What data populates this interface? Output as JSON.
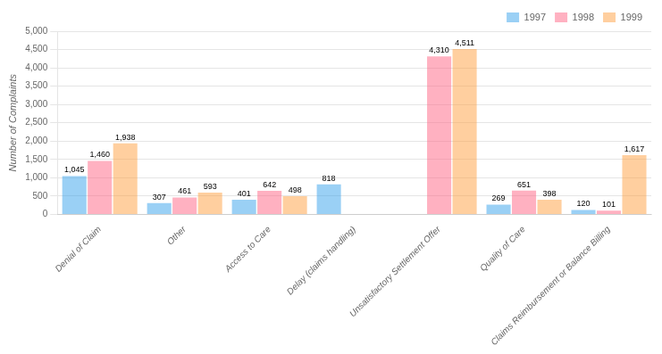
{
  "chart_data": {
    "type": "bar",
    "categories": [
      "Denial of Claim",
      "Other",
      "Access to Care",
      "Delay (claims handling)",
      "Unsatisfactory Settlement Offer",
      "Quality of Care",
      "Claims Reimbursement or Balance Billing"
    ],
    "series": [
      {
        "name": "1997",
        "values": [
          1045,
          307,
          401,
          818,
          0,
          269,
          120
        ],
        "value_labels": [
          "1,045",
          "307",
          "401",
          "818",
          null,
          "269",
          "120"
        ]
      },
      {
        "name": "1998",
        "values": [
          1460,
          461,
          642,
          0,
          4310,
          651,
          101
        ],
        "value_labels": [
          "1,460",
          "461",
          "642",
          null,
          "4,310",
          "651",
          "101"
        ]
      },
      {
        "name": "1999",
        "values": [
          1938,
          593,
          498,
          0,
          4511,
          398,
          1617
        ],
        "value_labels": [
          "1,938",
          "593",
          "498",
          null,
          "4,511",
          "398",
          "1,617"
        ]
      }
    ],
    "ylabel": "Number of Complaints",
    "ylim": [
      0,
      5000
    ],
    "yticks": [
      0,
      500,
      {
        "value": 1000,
        "label": "1,000"
      },
      {
        "value": 1500,
        "label": "1,500"
      },
      {
        "value": 2000,
        "label": "2,000"
      },
      {
        "value": 2500,
        "label": "2,500"
      },
      {
        "value": 3000,
        "label": "3,000"
      },
      {
        "value": 3500,
        "label": "3,500"
      },
      {
        "value": 4000,
        "label": "4,000"
      },
      {
        "value": 4500,
        "label": "4,500"
      },
      {
        "value": 5000,
        "label": "5,000"
      }
    ],
    "grid": true,
    "legend": "upper right",
    "data_labels": true
  }
}
